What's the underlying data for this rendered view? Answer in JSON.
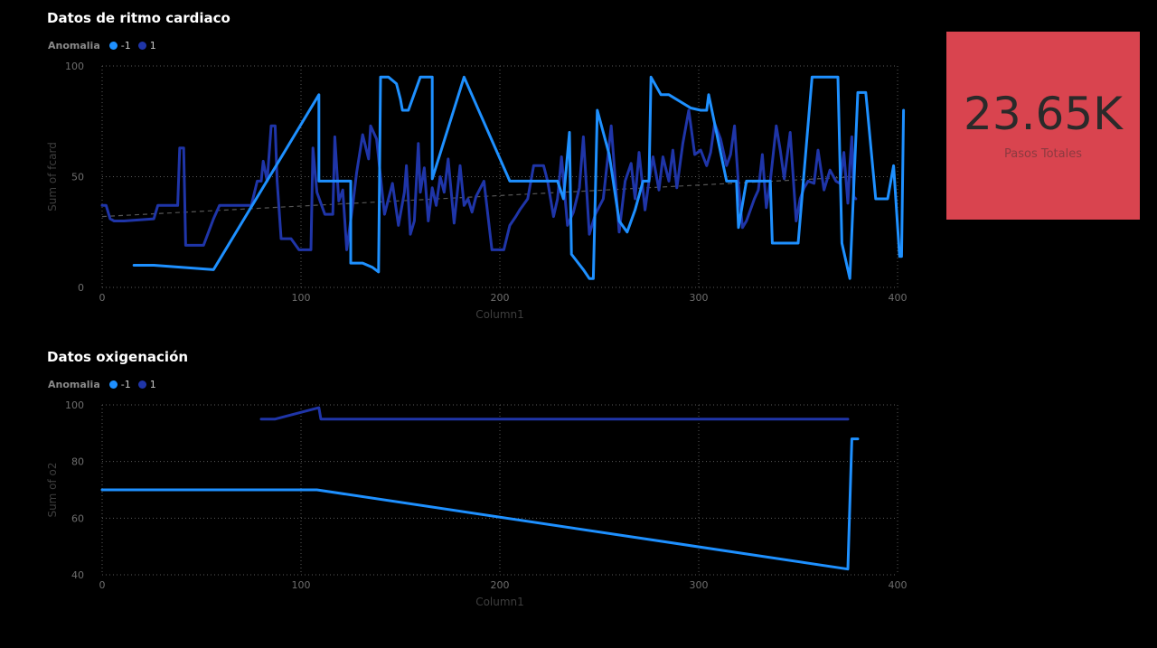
{
  "colors": {
    "background": "#000000",
    "series_neg1": "#1e90ff",
    "series_1": "#1f35a8",
    "grid": "#5a5a5a",
    "axis_text": "#6e6e6e",
    "kpi_bg": "#d9444f"
  },
  "kpi": {
    "value": "23.65K",
    "label": "Pasos Totales"
  },
  "chart_data": [
    {
      "type": "line",
      "title": "Datos de ritmo cardiaco",
      "legend_title": "Anomalia",
      "legend_position": "top-left",
      "xlabel": "Column1",
      "ylabel": "Sum of fcard",
      "xlim": [
        0,
        400
      ],
      "ylim": [
        0,
        100
      ],
      "xticks": [
        0,
        100,
        200,
        300,
        400
      ],
      "yticks": [
        0,
        50,
        100
      ],
      "grid": true,
      "trendline": {
        "points": [
          [
            0,
            32
          ],
          [
            380,
            50
          ]
        ]
      },
      "series": [
        {
          "name": "-1",
          "color": "#1e90ff",
          "points": [
            [
              16,
              10
            ],
            [
              26,
              10
            ],
            [
              56,
              8
            ],
            [
              109,
              87
            ],
            [
              109,
              48
            ],
            [
              125,
              48
            ],
            [
              125,
              11
            ],
            [
              131,
              11
            ],
            [
              136,
              9
            ],
            [
              139,
              7
            ],
            [
              140,
              95
            ],
            [
              144,
              95
            ],
            [
              148,
              92
            ],
            [
              150,
              85
            ],
            [
              151,
              80
            ],
            [
              154,
              80
            ],
            [
              160,
              95
            ],
            [
              166,
              95
            ],
            [
              166,
              49
            ],
            [
              182,
              95
            ],
            [
              205,
              48
            ],
            [
              229,
              48
            ],
            [
              232,
              40
            ],
            [
              235,
              70
            ],
            [
              236,
              15
            ],
            [
              242,
              8
            ],
            [
              245,
              4
            ],
            [
              247,
              4
            ],
            [
              249,
              80
            ],
            [
              255,
              60
            ],
            [
              260,
              30
            ],
            [
              264,
              25
            ],
            [
              268,
              35
            ],
            [
              272,
              48
            ],
            [
              275,
              48
            ],
            [
              276,
              95
            ],
            [
              281,
              87
            ],
            [
              285,
              87
            ],
            [
              296,
              81
            ],
            [
              301,
              80
            ],
            [
              304,
              80
            ],
            [
              305,
              87
            ],
            [
              314,
              48
            ],
            [
              319,
              48
            ],
            [
              320,
              27
            ],
            [
              324,
              48
            ],
            [
              336,
              48
            ],
            [
              337,
              20
            ],
            [
              350,
              20
            ],
            [
              357,
              95
            ],
            [
              363,
              95
            ],
            [
              370,
              95
            ],
            [
              372,
              20
            ],
            [
              376,
              4
            ],
            [
              380,
              88
            ],
            [
              384,
              88
            ],
            [
              389,
              40
            ],
            [
              395,
              40
            ],
            [
              398,
              55
            ],
            [
              401,
              14
            ],
            [
              402,
              14
            ],
            [
              403,
              80
            ]
          ]
        },
        {
          "name": "1",
          "color": "#1f35a8",
          "points": [
            [
              0,
              37
            ],
            [
              2,
              37
            ],
            [
              4,
              31
            ],
            [
              6,
              30
            ],
            [
              11,
              30
            ],
            [
              26,
              31
            ],
            [
              28,
              37
            ],
            [
              38,
              37
            ],
            [
              39,
              63
            ],
            [
              41,
              63
            ],
            [
              42,
              19
            ],
            [
              51,
              19
            ],
            [
              56,
              31
            ],
            [
              59,
              37
            ],
            [
              75,
              37
            ],
            [
              78,
              48
            ],
            [
              80,
              48
            ],
            [
              81,
              57
            ],
            [
              83,
              48
            ],
            [
              85,
              73
            ],
            [
              87,
              73
            ],
            [
              88,
              48
            ],
            [
              90,
              22
            ],
            [
              95,
              22
            ],
            [
              99,
              17
            ],
            [
              105,
              17
            ],
            [
              106,
              63
            ],
            [
              108,
              43
            ],
            [
              112,
              33
            ],
            [
              116,
              33
            ],
            [
              117,
              68
            ],
            [
              119,
              39
            ],
            [
              121,
              44
            ],
            [
              123,
              17
            ],
            [
              126,
              37
            ],
            [
              128,
              52
            ],
            [
              131,
              69
            ],
            [
              134,
              58
            ],
            [
              135,
              73
            ],
            [
              138,
              67
            ],
            [
              142,
              33
            ],
            [
              144,
              40
            ],
            [
              146,
              47
            ],
            [
              149,
              28
            ],
            [
              150,
              33
            ],
            [
              152,
              43
            ],
            [
              153,
              55
            ],
            [
              155,
              24
            ],
            [
              157,
              30
            ],
            [
              159,
              65
            ],
            [
              160,
              43
            ],
            [
              162,
              54
            ],
            [
              164,
              30
            ],
            [
              166,
              45
            ],
            [
              168,
              37
            ],
            [
              170,
              50
            ],
            [
              172,
              43
            ],
            [
              174,
              58
            ],
            [
              177,
              29
            ],
            [
              180,
              55
            ],
            [
              182,
              37
            ],
            [
              184,
              40
            ],
            [
              186,
              34
            ],
            [
              188,
              41
            ],
            [
              192,
              48
            ],
            [
              196,
              17
            ],
            [
              202,
              17
            ],
            [
              205,
              28
            ],
            [
              208,
              32
            ],
            [
              210,
              35
            ],
            [
              214,
              40
            ],
            [
              217,
              55
            ],
            [
              222,
              55
            ],
            [
              224,
              48
            ],
            [
              227,
              32
            ],
            [
              229,
              40
            ],
            [
              231,
              59
            ],
            [
              234,
              28
            ],
            [
              237,
              34
            ],
            [
              240,
              45
            ],
            [
              242,
              68
            ],
            [
              245,
              24
            ],
            [
              248,
              33
            ],
            [
              252,
              40
            ],
            [
              256,
              73
            ],
            [
              260,
              25
            ],
            [
              263,
              48
            ],
            [
              266,
              56
            ],
            [
              268,
              40
            ],
            [
              270,
              61
            ],
            [
              273,
              35
            ],
            [
              275,
              48
            ],
            [
              277,
              59
            ],
            [
              280,
              44
            ],
            [
              282,
              59
            ],
            [
              285,
              48
            ],
            [
              287,
              62
            ],
            [
              289,
              45
            ],
            [
              292,
              65
            ],
            [
              295,
              80
            ],
            [
              298,
              60
            ],
            [
              301,
              62
            ],
            [
              304,
              55
            ],
            [
              306,
              61
            ],
            [
              308,
              74
            ],
            [
              311,
              67
            ],
            [
              314,
              55
            ],
            [
              316,
              60
            ],
            [
              318,
              73
            ],
            [
              320,
              46
            ],
            [
              322,
              27
            ],
            [
              324,
              30
            ],
            [
              326,
              35
            ],
            [
              328,
              40
            ],
            [
              330,
              44
            ],
            [
              332,
              60
            ],
            [
              334,
              36
            ],
            [
              336,
              48
            ],
            [
              339,
              73
            ],
            [
              341,
              62
            ],
            [
              343,
              49
            ],
            [
              346,
              70
            ],
            [
              349,
              30
            ],
            [
              351,
              40
            ],
            [
              353,
              45
            ],
            [
              355,
              48
            ],
            [
              358,
              47
            ],
            [
              360,
              62
            ],
            [
              363,
              44
            ],
            [
              366,
              53
            ],
            [
              369,
              48
            ],
            [
              371,
              47
            ],
            [
              373,
              61
            ],
            [
              375,
              38
            ],
            [
              376,
              55
            ],
            [
              377,
              68
            ],
            [
              378,
              41
            ],
            [
              379,
              40
            ]
          ]
        }
      ]
    },
    {
      "type": "line",
      "title": "Datos oxigenación",
      "legend_title": "Anomalia",
      "legend_position": "top-left",
      "xlabel": "Column1",
      "ylabel": "Sum of o2",
      "xlim": [
        0,
        400
      ],
      "ylim": [
        40,
        100
      ],
      "xticks": [
        0,
        100,
        200,
        300,
        400
      ],
      "yticks": [
        40,
        60,
        80,
        100
      ],
      "grid": true,
      "series": [
        {
          "name": "-1",
          "color": "#1e90ff",
          "points": [
            [
              0,
              70
            ],
            [
              108,
              70
            ],
            [
              375,
              42
            ],
            [
              377,
              88
            ],
            [
              380,
              88
            ]
          ]
        },
        {
          "name": "1",
          "color": "#1f35a8",
          "points": [
            [
              80,
              95
            ],
            [
              87,
              95
            ],
            [
              109,
              99
            ],
            [
              110,
              95
            ],
            [
              375,
              95
            ]
          ]
        }
      ]
    }
  ]
}
